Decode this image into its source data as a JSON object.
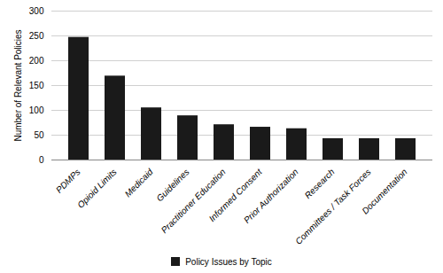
{
  "chart_data": {
    "type": "bar",
    "categories": [
      "PDMPs",
      "Opioid Limits",
      "Medicaid",
      "Guidelines",
      "Practitioner Education",
      "Informed Consent",
      "Prior Authorization",
      "Research",
      "Committees / Task Forces",
      "Documentation"
    ],
    "series": [
      {
        "name": "Policy Issues by Topic",
        "color": "#1a1a1a",
        "values": [
          247,
          169,
          105,
          89,
          71,
          66,
          63,
          43,
          43,
          43
        ]
      }
    ],
    "ylabel": "Number of Relevant Policies",
    "ylim": [
      0,
      300
    ],
    "yticks": [
      0,
      50,
      100,
      150,
      200,
      250,
      300
    ],
    "grid": true,
    "legend": "bottom"
  }
}
